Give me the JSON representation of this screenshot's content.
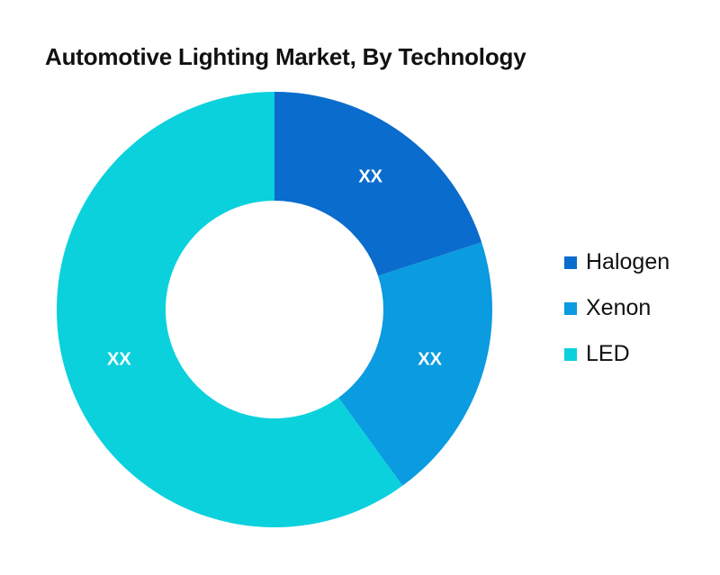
{
  "chart_data": {
    "type": "pie",
    "title": "Automotive Lighting Market, By Technology",
    "donut": true,
    "legend_position": "right",
    "slices": [
      {
        "name": "Halogen",
        "value": 20,
        "label": "XX",
        "color": "#0a6ccc"
      },
      {
        "name": "Xenon",
        "value": 20,
        "label": "XX",
        "color": "#0a9be0"
      },
      {
        "name": "LED",
        "value": 60,
        "label": "XX",
        "color": "#0bd1dd"
      }
    ]
  }
}
